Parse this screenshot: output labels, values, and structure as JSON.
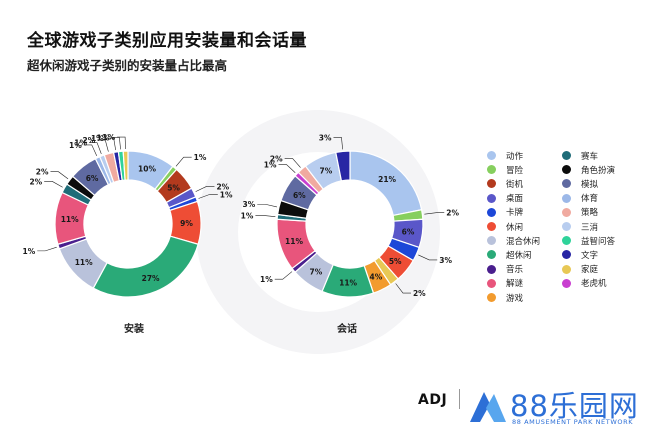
{
  "title": "全球游戏子类别应用安装量和会话量",
  "subtitle": "超休闲游戏子类别的安装量占比最高",
  "footer": {
    "brand_left": "ADJ",
    "brand_main": "88乐园网",
    "brand_sub": "88 AMUSEMENT PARK NETWORK"
  },
  "colors": {
    "动作": "#a9c5ee",
    "冒险": "#86cf5e",
    "街机": "#b33a1e",
    "桌面": "#5a57c9",
    "卡牌": "#1d47d8",
    "休闲": "#ee4d35",
    "混合休闲": "#b9c2db",
    "超休闲": "#2aaa78",
    "音乐": "#4a1f8e",
    "解谜": "#e8557c",
    "游戏": "#f29b2e",
    "赛车": "#1f6c78",
    "角色扮演": "#0c0c0c",
    "模拟": "#5f6aa1",
    "体育": "#9cb8e8",
    "策略": "#f0aaa0",
    "三消": "#b8cdef",
    "益智问答": "#2fd39a",
    "文字": "#2826a4",
    "家庭": "#e8c855",
    "老虎机": "#c93fd0"
  },
  "chart_data": [
    {
      "type": "pie",
      "title": "安装",
      "slices": [
        {
          "label": "动作",
          "value": 10
        },
        {
          "label": "冒险",
          "value": 1
        },
        {
          "label": "街机",
          "value": 5
        },
        {
          "label": "桌面",
          "value": 2
        },
        {
          "label": "卡牌",
          "value": 1
        },
        {
          "label": "休闲",
          "value": 9
        },
        {
          "label": "超休闲",
          "value": 27
        },
        {
          "label": "混合休闲",
          "value": 11
        },
        {
          "label": "音乐",
          "value": 1
        },
        {
          "label": "解谜",
          "value": 11
        },
        {
          "label": "赛车",
          "value": 2
        },
        {
          "label": "角色扮演",
          "value": 2
        },
        {
          "label": "模拟",
          "value": 6
        },
        {
          "label": "体育",
          "value": 1
        },
        {
          "label": "三消",
          "value": 1
        },
        {
          "label": "策略",
          "value": 2
        },
        {
          "label": "文字",
          "value": 1
        },
        {
          "label": "益智问答",
          "value": 1
        },
        {
          "label": "家庭",
          "value": 1
        }
      ]
    },
    {
      "type": "pie",
      "title": "会话",
      "slices": [
        {
          "label": "动作",
          "value": 21
        },
        {
          "label": "冒险",
          "value": 2
        },
        {
          "label": "桌面",
          "value": 6
        },
        {
          "label": "卡牌",
          "value": 3
        },
        {
          "label": "休闲",
          "value": 5
        },
        {
          "label": "家庭",
          "value": 2
        },
        {
          "label": "游戏",
          "value": 4
        },
        {
          "label": "超休闲",
          "value": 11
        },
        {
          "label": "混合休闲",
          "value": 7
        },
        {
          "label": "音乐",
          "value": 1
        },
        {
          "label": "解谜",
          "value": 11
        },
        {
          "label": "赛车",
          "value": 1
        },
        {
          "label": "角色扮演",
          "value": 3
        },
        {
          "label": "模拟",
          "value": 6
        },
        {
          "label": "老虎机",
          "value": 1
        },
        {
          "label": "策略",
          "value": 2
        },
        {
          "label": "三消",
          "value": 7
        },
        {
          "label": "文字",
          "value": 3
        }
      ]
    }
  ],
  "legend": [
    [
      "动作",
      "赛车"
    ],
    [
      "冒险",
      "角色扮演"
    ],
    [
      "街机",
      "模拟"
    ],
    [
      "桌面",
      "体育"
    ],
    [
      "卡牌",
      "策略"
    ],
    [
      "休闲",
      "三消"
    ],
    [
      "混合休闲",
      "益智问答"
    ],
    [
      "超休闲",
      "文字"
    ],
    [
      "音乐",
      "家庭"
    ],
    [
      "解谜",
      "老虎机"
    ],
    [
      "游戏",
      ""
    ]
  ]
}
